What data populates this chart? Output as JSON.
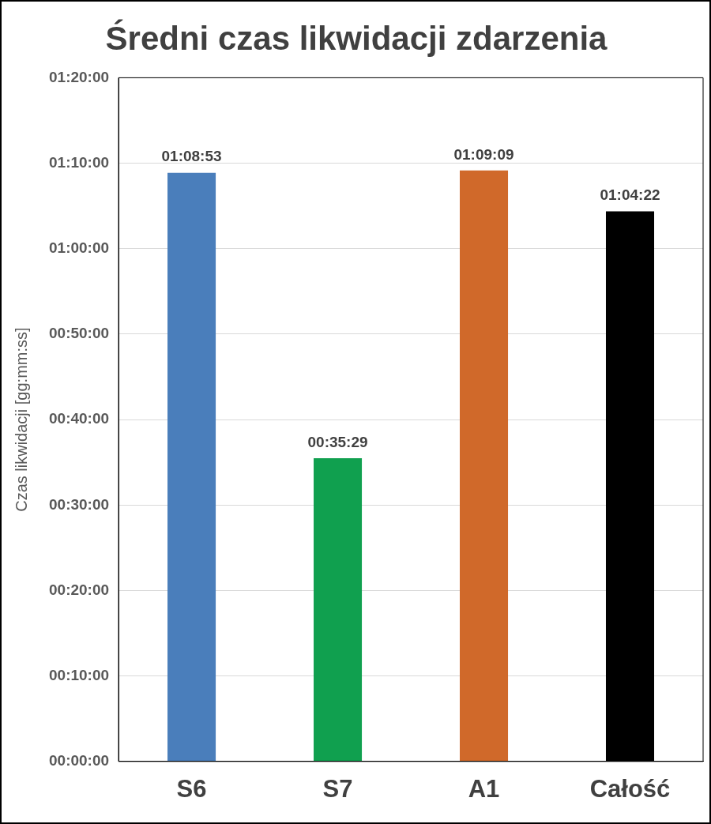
{
  "chart_data": {
    "type": "bar",
    "title": "Średni czas likwidacji zdarzenia",
    "ylabel": "Czas likwidacji [gg:mm:ss]",
    "categories": [
      "S6",
      "S7",
      "A1",
      "Całość"
    ],
    "values": [
      68.883,
      35.483,
      69.15,
      64.367
    ],
    "colors": [
      "#4a7ebb",
      "#10a04f",
      "#d0692a",
      "#000000"
    ],
    "value_labels": [
      "01:08:53",
      "00:35:29",
      "01:09:09",
      "01:04:22"
    ],
    "ylim": [
      0,
      80
    ],
    "yticks": [
      {
        "value": 0,
        "label": "00:00:00"
      },
      {
        "value": 10,
        "label": "00:10:00"
      },
      {
        "value": 20,
        "label": "00:20:00"
      },
      {
        "value": 30,
        "label": "00:30:00"
      },
      {
        "value": 40,
        "label": "00:40:00"
      },
      {
        "value": 50,
        "label": "00:50:00"
      },
      {
        "value": 60,
        "label": "01:00:00"
      },
      {
        "value": 70,
        "label": "01:10:00"
      },
      {
        "value": 80,
        "label": "01:20:00"
      }
    ],
    "grid": "y"
  }
}
